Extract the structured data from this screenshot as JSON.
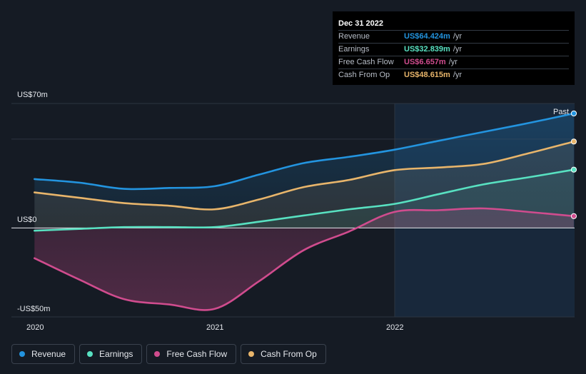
{
  "chart_data": {
    "type": "area",
    "y_labels": {
      "top": "US$70m",
      "zero": "US$0",
      "bottom": "-US$50m"
    },
    "ylim": [
      -50,
      70
    ],
    "x_ticks": [
      "2020",
      "2021",
      "2022"
    ],
    "past_label": "Past",
    "legend_placement": "bottom-left",
    "grid": true,
    "series": [
      {
        "name": "Revenue",
        "color": "#2394df",
        "points": [
          [
            "2019-12-31",
            27.5
          ],
          [
            "2020-03-31",
            25.5
          ],
          [
            "2020-06-30",
            22
          ],
          [
            "2020-09-30",
            22.5
          ],
          [
            "2020-12-31",
            23.5
          ],
          [
            "2021-03-31",
            30
          ],
          [
            "2021-06-30",
            36.5
          ],
          [
            "2021-09-30",
            40
          ],
          [
            "2021-12-31",
            44
          ],
          [
            "2022-03-31",
            49
          ],
          [
            "2022-06-30",
            54
          ],
          [
            "2022-09-30",
            59
          ],
          [
            "2022-12-31",
            64.4
          ]
        ]
      },
      {
        "name": "Earnings",
        "color": "#58e1c1",
        "points": [
          [
            "2019-12-31",
            -1.5
          ],
          [
            "2020-03-31",
            -0.5
          ],
          [
            "2020-06-30",
            0.5
          ],
          [
            "2020-09-30",
            0.5
          ],
          [
            "2020-12-31",
            0.5
          ],
          [
            "2021-03-31",
            3.5
          ],
          [
            "2021-06-30",
            7
          ],
          [
            "2021-09-30",
            10.5
          ],
          [
            "2021-12-31",
            13.5
          ],
          [
            "2022-03-31",
            19
          ],
          [
            "2022-06-30",
            24.5
          ],
          [
            "2022-09-30",
            28.5
          ],
          [
            "2022-12-31",
            32.8
          ]
        ]
      },
      {
        "name": "Free Cash Flow",
        "color": "#d04c8e",
        "points": [
          [
            "2019-12-31",
            -17
          ],
          [
            "2020-03-31",
            -29
          ],
          [
            "2020-06-30",
            -40
          ],
          [
            "2020-09-30",
            -43
          ],
          [
            "2020-12-31",
            -45.5
          ],
          [
            "2021-03-31",
            -30
          ],
          [
            "2021-06-30",
            -12.5
          ],
          [
            "2021-09-30",
            -2
          ],
          [
            "2021-12-31",
            9
          ],
          [
            "2022-03-31",
            10
          ],
          [
            "2022-06-30",
            11
          ],
          [
            "2022-09-30",
            9
          ],
          [
            "2022-12-31",
            6.66
          ]
        ]
      },
      {
        "name": "Cash From Op",
        "color": "#e8b56b",
        "points": [
          [
            "2019-12-31",
            20
          ],
          [
            "2020-03-31",
            17
          ],
          [
            "2020-06-30",
            14
          ],
          [
            "2020-09-30",
            12.5
          ],
          [
            "2020-12-31",
            10.5
          ],
          [
            "2021-03-31",
            16
          ],
          [
            "2021-06-30",
            23
          ],
          [
            "2021-09-30",
            27
          ],
          [
            "2021-12-31",
            32.5
          ],
          [
            "2022-03-31",
            34
          ],
          [
            "2022-06-30",
            36
          ],
          [
            "2022-09-30",
            42
          ],
          [
            "2022-12-31",
            48.6
          ]
        ]
      }
    ]
  },
  "tooltip": {
    "date": "Dec 31 2022",
    "unit": "/yr",
    "rows": [
      {
        "name": "Revenue",
        "value": "US$64.424m",
        "color": "#2394df"
      },
      {
        "name": "Earnings",
        "value": "US$32.839m",
        "color": "#58e1c1"
      },
      {
        "name": "Free Cash Flow",
        "value": "US$6.657m",
        "color": "#d04c8e"
      },
      {
        "name": "Cash From Op",
        "value": "US$48.615m",
        "color": "#e8b56b"
      }
    ]
  },
  "legend": [
    {
      "label": "Revenue",
      "color": "#2394df"
    },
    {
      "label": "Earnings",
      "color": "#58e1c1"
    },
    {
      "label": "Free Cash Flow",
      "color": "#d04c8e"
    },
    {
      "label": "Cash From Op",
      "color": "#e8b56b"
    }
  ]
}
